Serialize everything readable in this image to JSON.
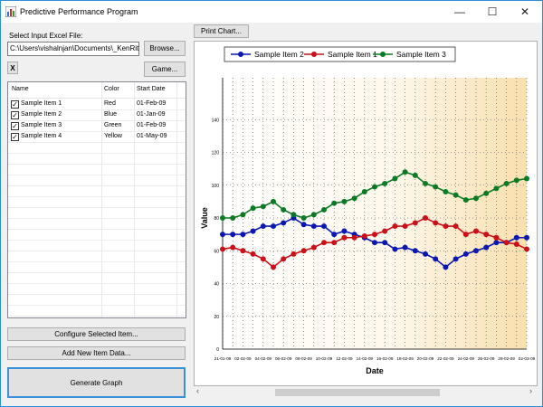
{
  "window": {
    "title": "Predictive Performance Program",
    "minimize": "—",
    "maximize": "☐",
    "close": "✕"
  },
  "input": {
    "label": "Select Input Excel File:",
    "path": "C:\\Users\\vishalnjan\\Documents\\_KenRite\\PRO\\",
    "browse": "Browse...",
    "clear": "X",
    "game": "Game..."
  },
  "list": {
    "columns": [
      "Name",
      "Color",
      "Start Date"
    ],
    "rows": [
      {
        "checked": true,
        "name": "Sample Item 1",
        "color": "Red",
        "start": "01-Feb-09"
      },
      {
        "checked": true,
        "name": "Sample Item 2",
        "color": "Blue",
        "start": "01-Jan-09"
      },
      {
        "checked": true,
        "name": "Sample Item 3",
        "color": "Green",
        "start": "01-Feb-09"
      },
      {
        "checked": true,
        "name": "Sample Item 4",
        "color": "Yellow",
        "start": "01-May-09"
      }
    ]
  },
  "buttons": {
    "configure": "Configure Selected Item...",
    "add_new": "Add New Item Data...",
    "generate": "Generate Graph",
    "print_chart": "Print Chart..."
  },
  "scroll": {
    "left": "‹",
    "right": "›"
  },
  "chart_data": {
    "type": "line",
    "title": "",
    "xlabel": "Date",
    "ylabel": "Value",
    "ylim": [
      0,
      160
    ],
    "yticks": [
      0,
      20,
      40,
      60,
      80,
      100,
      120,
      140
    ],
    "grid": true,
    "legend_position": "top",
    "x_tick_labels": [
      "21-01-09",
      "02-02-09",
      "04-02-09",
      "06-02-09",
      "08-02-09",
      "10-02-09",
      "12-02-09",
      "14-02-09",
      "16-02-09",
      "18-02-09",
      "20-02-09",
      "22-02-09",
      "24-02-09",
      "26-02-09",
      "28-02-09",
      "02-03-09"
    ],
    "series": [
      {
        "name": "Sample Item 2",
        "color": "#0a17b0",
        "values": [
          70,
          70,
          70,
          72,
          75,
          75,
          77,
          80,
          76,
          75,
          75,
          70,
          72,
          70,
          68,
          65,
          65,
          61,
          62,
          60,
          58,
          55,
          50,
          55,
          58,
          60,
          62,
          65,
          65,
          68,
          68
        ]
      },
      {
        "name": "Sample Item 1",
        "color": "#cc1018",
        "values": [
          61,
          62,
          60,
          58,
          55,
          50,
          55,
          58,
          60,
          62,
          65,
          65,
          68,
          68,
          69,
          70,
          72,
          75,
          75,
          77,
          80,
          77,
          75,
          75,
          70,
          72,
          70,
          68,
          65,
          64,
          61
        ]
      },
      {
        "name": "Sample Item 3",
        "color": "#0a7a24",
        "values": [
          80,
          80,
          82,
          86,
          87,
          90,
          85,
          82,
          80,
          82,
          85,
          89,
          90,
          92,
          96,
          99,
          101,
          104,
          108,
          106,
          101,
          99,
          96,
          94,
          91,
          92,
          95,
          98,
          101,
          103,
          104
        ]
      }
    ]
  }
}
